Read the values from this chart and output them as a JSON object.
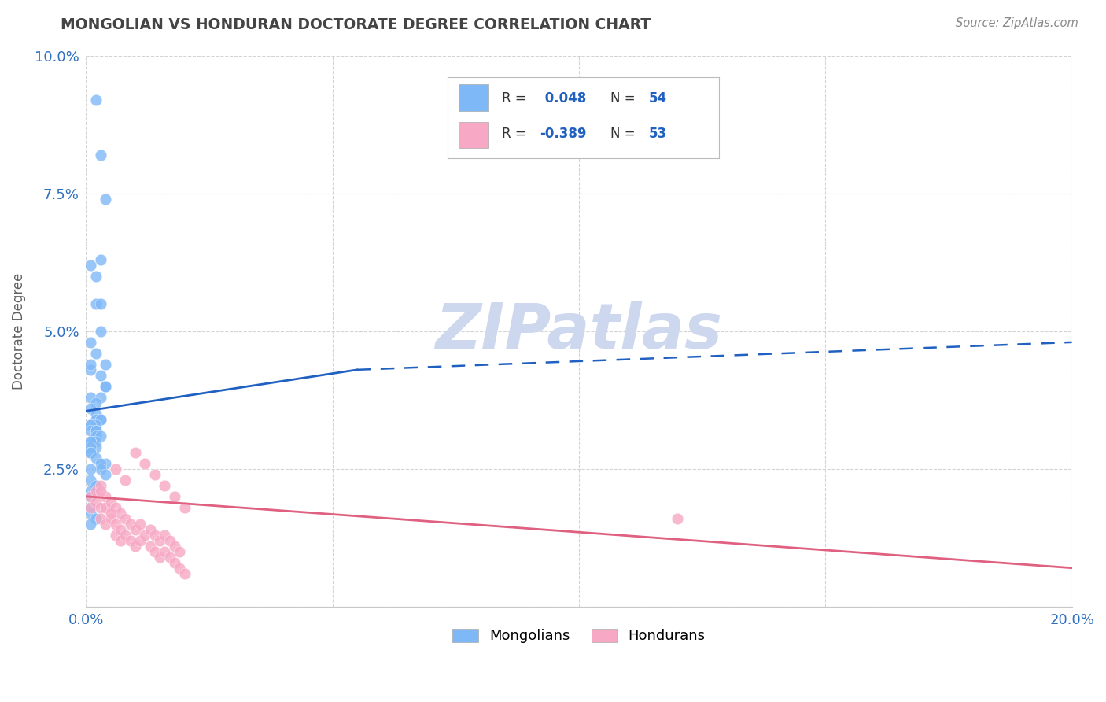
{
  "title": "MONGOLIAN VS HONDURAN DOCTORATE DEGREE CORRELATION CHART",
  "source": "Source: ZipAtlas.com",
  "ylabel_label": "Doctorate Degree",
  "xlim": [
    0.0,
    0.2
  ],
  "ylim": [
    0.0,
    0.1
  ],
  "xticks": [
    0.0,
    0.05,
    0.1,
    0.15,
    0.2
  ],
  "yticks": [
    0.0,
    0.025,
    0.05,
    0.075,
    0.1
  ],
  "xtick_labels": [
    "0.0%",
    "",
    "",
    "",
    "20.0%"
  ],
  "ytick_labels": [
    "",
    "2.5%",
    "5.0%",
    "7.5%",
    "10.0%"
  ],
  "mongolian_R": 0.048,
  "mongolian_N": 54,
  "honduran_R": -0.389,
  "honduran_N": 53,
  "mongolian_color": "#7eb8f7",
  "honduran_color": "#f7a8c4",
  "mongolian_line_color": "#2060c0",
  "honduran_line_color": "#e06080",
  "background_color": "#ffffff",
  "grid_color": "#c8c8c8",
  "title_color": "#444444",
  "watermark_color": "#cdd8ee",
  "mongolians_x": [
    0.002,
    0.003,
    0.004,
    0.002,
    0.003,
    0.001,
    0.002,
    0.003,
    0.003,
    0.001,
    0.002,
    0.004,
    0.001,
    0.003,
    0.004,
    0.004,
    0.001,
    0.003,
    0.002,
    0.001,
    0.002,
    0.002,
    0.003,
    0.003,
    0.001,
    0.002,
    0.001,
    0.001,
    0.002,
    0.002,
    0.002,
    0.003,
    0.002,
    0.001,
    0.001,
    0.002,
    0.001,
    0.001,
    0.001,
    0.002,
    0.004,
    0.003,
    0.003,
    0.001,
    0.004,
    0.001,
    0.002,
    0.001,
    0.001,
    0.001,
    0.001,
    0.002,
    0.001,
    0.001
  ],
  "mongolians_y": [
    0.092,
    0.082,
    0.074,
    0.06,
    0.063,
    0.062,
    0.055,
    0.055,
    0.05,
    0.048,
    0.046,
    0.044,
    0.043,
    0.042,
    0.04,
    0.04,
    0.038,
    0.038,
    0.037,
    0.036,
    0.035,
    0.034,
    0.034,
    0.034,
    0.033,
    0.033,
    0.033,
    0.032,
    0.032,
    0.032,
    0.031,
    0.031,
    0.03,
    0.03,
    0.03,
    0.029,
    0.029,
    0.028,
    0.028,
    0.027,
    0.026,
    0.026,
    0.025,
    0.025,
    0.024,
    0.023,
    0.022,
    0.021,
    0.02,
    0.018,
    0.017,
    0.016,
    0.044,
    0.015
  ],
  "hondurans_x": [
    0.001,
    0.001,
    0.002,
    0.002,
    0.003,
    0.003,
    0.003,
    0.004,
    0.004,
    0.004,
    0.005,
    0.005,
    0.006,
    0.006,
    0.006,
    0.007,
    0.007,
    0.007,
    0.008,
    0.008,
    0.009,
    0.009,
    0.01,
    0.01,
    0.011,
    0.011,
    0.012,
    0.013,
    0.013,
    0.014,
    0.014,
    0.015,
    0.015,
    0.016,
    0.016,
    0.017,
    0.017,
    0.018,
    0.018,
    0.019,
    0.019,
    0.02,
    0.01,
    0.012,
    0.014,
    0.016,
    0.018,
    0.02,
    0.008,
    0.006,
    0.003,
    0.005,
    0.12
  ],
  "hondurans_y": [
    0.02,
    0.018,
    0.021,
    0.019,
    0.022,
    0.018,
    0.016,
    0.02,
    0.018,
    0.015,
    0.019,
    0.016,
    0.018,
    0.015,
    0.013,
    0.017,
    0.014,
    0.012,
    0.016,
    0.013,
    0.015,
    0.012,
    0.014,
    0.011,
    0.015,
    0.012,
    0.013,
    0.014,
    0.011,
    0.013,
    0.01,
    0.012,
    0.009,
    0.013,
    0.01,
    0.012,
    0.009,
    0.011,
    0.008,
    0.01,
    0.007,
    0.006,
    0.028,
    0.026,
    0.024,
    0.022,
    0.02,
    0.018,
    0.023,
    0.025,
    0.021,
    0.017,
    0.016
  ],
  "mongo_line_x0": 0.0,
  "mongo_line_x_solid_end": 0.055,
  "mongo_line_x_dash_end": 0.2,
  "mongo_line_y0": 0.0355,
  "mongo_line_y_solid_end": 0.043,
  "mongo_line_y_dash_end": 0.048,
  "hond_line_x0": 0.0,
  "hond_line_x1": 0.2,
  "hond_line_y0": 0.02,
  "hond_line_y1": 0.007
}
